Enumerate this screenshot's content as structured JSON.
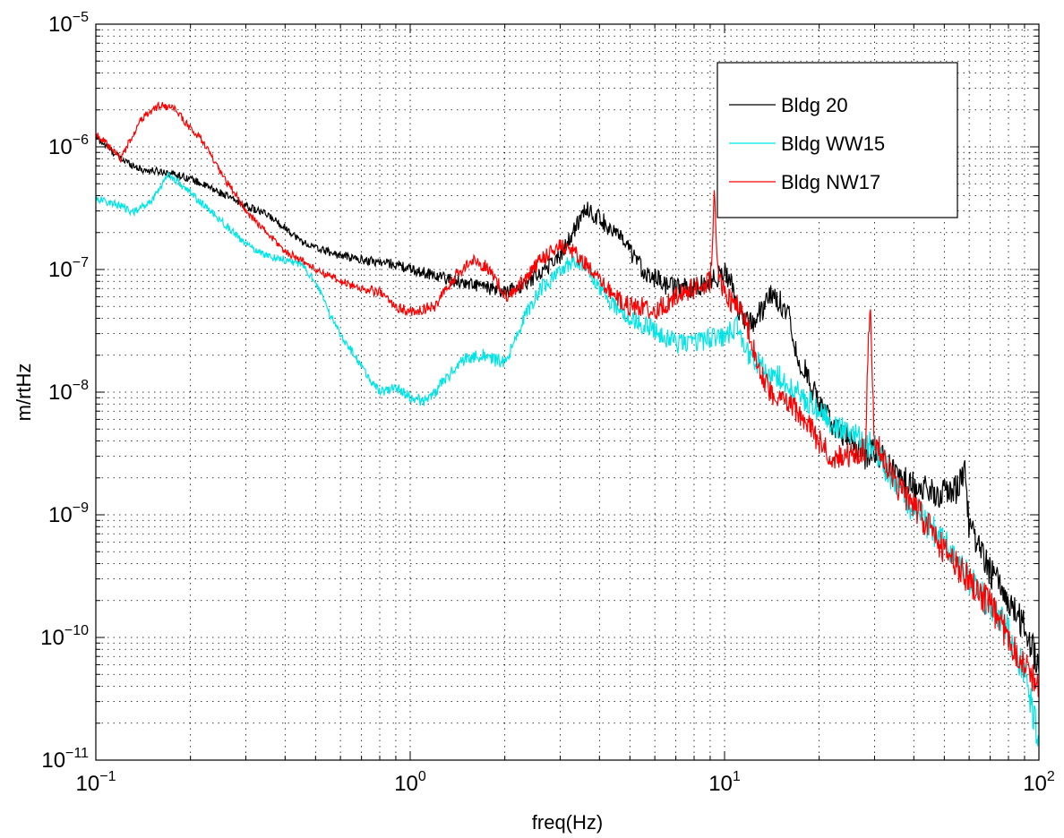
{
  "chart_data": {
    "type": "line",
    "xlabel": "freq(Hz)",
    "ylabel": "m/rtHz",
    "x_scale": "log",
    "y_scale": "log",
    "xlim": [
      0.1,
      100
    ],
    "ylim": [
      1e-11,
      1e-05
    ],
    "grid": true,
    "legend_position": "top-right",
    "x_ticks": [
      {
        "value": 0.1,
        "base": "10",
        "exp": "−1"
      },
      {
        "value": 1,
        "base": "10",
        "exp": "0"
      },
      {
        "value": 10,
        "base": "10",
        "exp": "1"
      },
      {
        "value": 100,
        "base": "10",
        "exp": "2"
      }
    ],
    "y_ticks": [
      {
        "value": 1e-11,
        "base": "10",
        "exp": "−11"
      },
      {
        "value": 1e-10,
        "base": "10",
        "exp": "−10"
      },
      {
        "value": 1e-09,
        "base": "10",
        "exp": "−9"
      },
      {
        "value": 1e-08,
        "base": "10",
        "exp": "−8"
      },
      {
        "value": 1e-07,
        "base": "10",
        "exp": "−7"
      },
      {
        "value": 1e-06,
        "base": "10",
        "exp": "−6"
      },
      {
        "value": 1e-05,
        "base": "10",
        "exp": "−5"
      }
    ],
    "series": [
      {
        "name": "Bldg 20",
        "color": "#000000",
        "x": [
          0.1,
          0.12,
          0.14,
          0.17,
          0.2,
          0.25,
          0.3,
          0.35,
          0.4,
          0.45,
          0.5,
          0.6,
          0.7,
          0.8,
          0.9,
          1.0,
          1.2,
          1.4,
          1.6,
          1.8,
          2.0,
          2.3,
          2.6,
          3.0,
          3.3,
          3.6,
          4.0,
          4.5,
          5.0,
          5.5,
          6.0,
          6.5,
          7.0,
          8.0,
          9.0,
          10.0,
          10.5,
          11.0,
          12.0,
          13.0,
          14.0,
          15.0,
          16.0,
          17.0,
          18.0,
          20.0,
          22.0,
          25.0,
          28.0,
          30.0,
          33.0,
          36.0,
          40.0,
          45.0,
          50.0,
          55.0,
          58.0,
          60.0,
          65.0,
          70.0,
          80.0,
          90.0,
          100.0
        ],
        "y": [
          1.2e-06,
          8e-07,
          6.5e-07,
          6.2e-07,
          5.5e-07,
          4.2e-07,
          3.3e-07,
          2.8e-07,
          2.2e-07,
          1.7e-07,
          1.5e-07,
          1.3e-07,
          1.2e-07,
          1.15e-07,
          1.1e-07,
          1e-07,
          9e-08,
          8e-08,
          7.5e-08,
          7e-08,
          6.5e-08,
          7.5e-08,
          9.5e-08,
          1.3e-07,
          2e-07,
          3.2e-07,
          2.6e-07,
          2e-07,
          1.4e-07,
          1e-07,
          8.5e-08,
          7.5e-08,
          7e-08,
          7e-08,
          8e-08,
          9.5e-08,
          8e-08,
          5e-08,
          3.5e-08,
          4.5e-08,
          6e-08,
          5.5e-08,
          4.5e-08,
          2e-08,
          1.5e-08,
          8e-09,
          5.5e-09,
          4e-09,
          3e-09,
          3.5e-09,
          2.5e-09,
          2e-09,
          1.8e-09,
          1.5e-09,
          1.5e-09,
          1.6e-09,
          2.5e-09,
          8e-10,
          5e-10,
          3.5e-10,
          2e-10,
          1.2e-10,
          6e-11
        ]
      },
      {
        "name": "Bldg WW15",
        "color": "#00e5e5",
        "x": [
          0.1,
          0.12,
          0.13,
          0.15,
          0.17,
          0.2,
          0.25,
          0.3,
          0.35,
          0.4,
          0.45,
          0.5,
          0.55,
          0.6,
          0.7,
          0.8,
          0.9,
          1.0,
          1.1,
          1.2,
          1.3,
          1.5,
          1.7,
          1.9,
          2.0,
          2.3,
          2.6,
          3.0,
          3.3,
          3.6,
          4.0,
          4.5,
          5.0,
          6.0,
          7.0,
          8.0,
          9.0,
          10.0,
          11.0,
          12.0,
          13.0,
          15.0,
          17.0,
          20.0,
          25.0,
          30.0,
          35.0,
          40.0,
          50.0,
          60.0,
          70.0,
          80.0,
          90.0,
          100.0
        ],
        "y": [
          3.8e-07,
          3.3e-07,
          2.9e-07,
          3.6e-07,
          6e-07,
          4.2e-07,
          2.5e-07,
          1.6e-07,
          1.3e-07,
          1.2e-07,
          1.1e-07,
          8e-08,
          4.5e-08,
          3e-08,
          1.6e-08,
          1e-08,
          1.1e-08,
          9e-09,
          8.5e-09,
          1e-08,
          1.3e-08,
          1.9e-08,
          2e-08,
          1.8e-08,
          1.7e-08,
          4e-08,
          7e-08,
          9.5e-08,
          1.2e-07,
          1.1e-07,
          7e-08,
          5e-08,
          4e-08,
          3.2e-08,
          2.5e-08,
          2.5e-08,
          2.8e-08,
          2.8e-08,
          3.5e-08,
          2e-08,
          1.6e-08,
          1.3e-08,
          1e-08,
          7e-09,
          4.5e-09,
          3.5e-09,
          1.8e-09,
          1.1e-09,
          6e-10,
          3e-10,
          1.8e-10,
          1.1e-10,
          5e-11,
          1.5e-11
        ]
      },
      {
        "name": "Bldg NW17",
        "color": "#ff0000",
        "x": [
          0.1,
          0.11,
          0.12,
          0.13,
          0.14,
          0.16,
          0.18,
          0.2,
          0.22,
          0.25,
          0.28,
          0.3,
          0.35,
          0.4,
          0.45,
          0.5,
          0.6,
          0.7,
          0.8,
          0.9,
          1.0,
          1.2,
          1.4,
          1.6,
          1.8,
          2.0,
          2.3,
          2.6,
          3.0,
          3.3,
          3.6,
          4.0,
          4.5,
          5.0,
          5.5,
          6.0,
          7.0,
          8.0,
          9.0,
          9.3,
          9.5,
          10.0,
          11.0,
          12.0,
          13.0,
          14.0,
          15.0,
          17.0,
          20.0,
          22.0,
          25.0,
          28.0,
          29.0,
          30.0,
          32.0,
          35.0,
          40.0,
          50.0,
          60.0,
          70.0,
          80.0,
          90.0,
          100.0
        ],
        "y": [
          1.3e-06,
          1e-06,
          8e-07,
          1.2e-06,
          1.7e-06,
          2.2e-06,
          2e-06,
          1.4e-06,
          1.1e-06,
          6e-07,
          4e-07,
          3e-07,
          2e-07,
          1.4e-07,
          1.2e-07,
          1e-07,
          8e-08,
          7e-08,
          6.5e-08,
          5e-08,
          4.5e-08,
          5e-08,
          9e-08,
          1.2e-07,
          1e-07,
          6e-08,
          8e-08,
          1.2e-07,
          1.6e-07,
          1.4e-07,
          1.1e-07,
          8e-08,
          6e-08,
          5e-08,
          5e-08,
          4.5e-08,
          6e-08,
          7e-08,
          8e-08,
          4.3e-07,
          1.1e-07,
          6e-08,
          5e-08,
          3e-08,
          1.5e-08,
          1e-08,
          9e-09,
          7e-09,
          4e-09,
          3e-09,
          3e-09,
          3.5e-09,
          5.5e-08,
          4e-09,
          3e-09,
          1.8e-09,
          1.2e-09,
          5e-10,
          3e-10,
          1.8e-10,
          1e-10,
          6e-11,
          4e-11
        ]
      }
    ]
  }
}
